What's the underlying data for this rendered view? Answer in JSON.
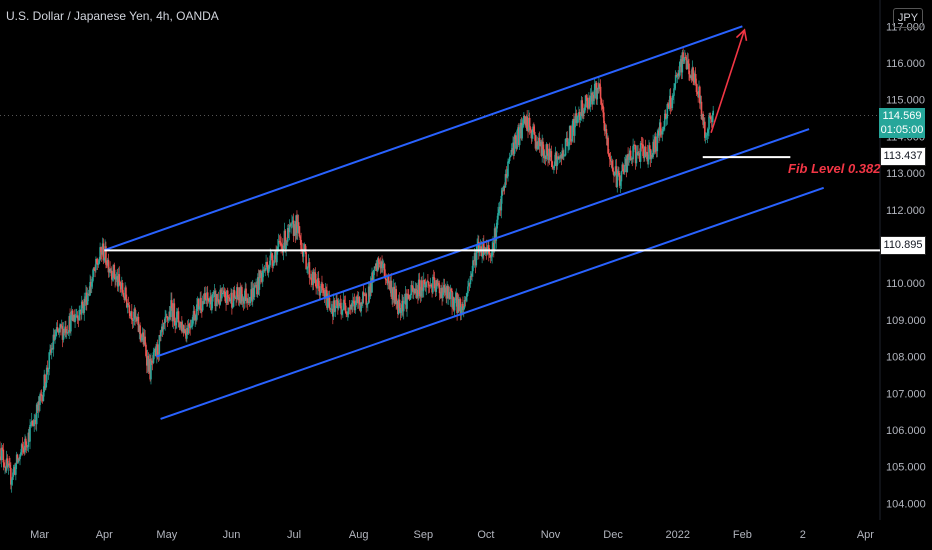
{
  "header": {
    "title": "U.S. Dollar / Japanese Yen, 4h, OANDA",
    "currency": "JPY"
  },
  "price_tags": {
    "last_price": "114.569",
    "countdown": "01:05:00",
    "level_upper": "113.437",
    "level_lower": "110.895"
  },
  "annotation": {
    "fib_label": "Fib Level 0.382"
  },
  "colors": {
    "background": "#000000",
    "up_candle": "#26a69a",
    "down_candle": "#ef5350",
    "channel": "#2962ff",
    "level": "#ffffff",
    "arrow": "#f23645",
    "text": "#b2b5be"
  },
  "chart_data": {
    "type": "candlestick",
    "title": "U.S. Dollar / Japanese Yen, 4h, OANDA",
    "y_axis": {
      "ticks": [
        "104.000",
        "105.000",
        "106.000",
        "107.000",
        "108.000",
        "109.000",
        "110.000",
        "111.000",
        "112.000",
        "113.000",
        "114.000",
        "115.000",
        "116.000",
        "117.000"
      ],
      "ylim": [
        103.6,
        117.5
      ]
    },
    "x_axis": {
      "ticks": [
        "Mar",
        "Apr",
        "May",
        "Jun",
        "Jul",
        "Aug",
        "Sep",
        "Oct",
        "Nov",
        "Dec",
        "2022",
        "Feb",
        "2",
        "Apr"
      ],
      "xlim": [
        "2021-02-10",
        "2022-04-08"
      ]
    },
    "price_path": [
      {
        "x": "2021-02-10",
        "y": 105.5
      },
      {
        "x": "2021-02-15",
        "y": 104.7
      },
      {
        "x": "2021-02-22",
        "y": 105.6
      },
      {
        "x": "2021-03-01",
        "y": 106.7
      },
      {
        "x": "2021-03-08",
        "y": 108.5
      },
      {
        "x": "2021-03-15",
        "y": 108.9
      },
      {
        "x": "2021-03-22",
        "y": 109.4
      },
      {
        "x": "2021-03-31",
        "y": 110.9
      },
      {
        "x": "2021-04-06",
        "y": 110.2
      },
      {
        "x": "2021-04-13",
        "y": 109.4
      },
      {
        "x": "2021-04-20",
        "y": 108.4
      },
      {
        "x": "2021-04-23",
        "y": 107.6
      },
      {
        "x": "2021-05-03",
        "y": 109.3
      },
      {
        "x": "2021-05-10",
        "y": 108.7
      },
      {
        "x": "2021-05-17",
        "y": 109.5
      },
      {
        "x": "2021-06-01",
        "y": 109.6
      },
      {
        "x": "2021-06-11",
        "y": 109.7
      },
      {
        "x": "2021-06-18",
        "y": 110.5
      },
      {
        "x": "2021-07-02",
        "y": 111.6
      },
      {
        "x": "2021-07-09",
        "y": 110.2
      },
      {
        "x": "2021-07-20",
        "y": 109.3
      },
      {
        "x": "2021-08-04",
        "y": 109.5
      },
      {
        "x": "2021-08-11",
        "y": 110.6
      },
      {
        "x": "2021-08-20",
        "y": 109.4
      },
      {
        "x": "2021-09-02",
        "y": 110.0
      },
      {
        "x": "2021-09-10",
        "y": 109.8
      },
      {
        "x": "2021-09-20",
        "y": 109.3
      },
      {
        "x": "2021-09-27",
        "y": 111.0
      },
      {
        "x": "2021-10-04",
        "y": 110.9
      },
      {
        "x": "2021-10-13",
        "y": 113.6
      },
      {
        "x": "2021-10-20",
        "y": 114.4
      },
      {
        "x": "2021-10-28",
        "y": 113.6
      },
      {
        "x": "2021-11-05",
        "y": 113.3
      },
      {
        "x": "2021-11-16",
        "y": 114.8
      },
      {
        "x": "2021-11-24",
        "y": 115.3
      },
      {
        "x": "2021-11-29",
        "y": 113.5
      },
      {
        "x": "2021-12-03",
        "y": 112.8
      },
      {
        "x": "2021-12-10",
        "y": 113.5
      },
      {
        "x": "2021-12-20",
        "y": 113.6
      },
      {
        "x": "2021-12-28",
        "y": 114.8
      },
      {
        "x": "2022-01-04",
        "y": 116.2
      },
      {
        "x": "2022-01-11",
        "y": 115.2
      },
      {
        "x": "2022-01-14",
        "y": 114.1
      },
      {
        "x": "2022-01-18",
        "y": 114.6
      }
    ],
    "lines": [
      {
        "name": "channel-top",
        "from": {
          "x": "2021-04-01",
          "y": 110.9
        },
        "to": {
          "x": "2022-02-01",
          "y": 117.0
        }
      },
      {
        "name": "channel-mid",
        "from": {
          "x": "2021-04-26",
          "y": 108.0
        },
        "to": {
          "x": "2022-03-05",
          "y": 114.2
        }
      },
      {
        "name": "channel-bottom",
        "from": {
          "x": "2021-04-28",
          "y": 106.3
        },
        "to": {
          "x": "2022-03-12",
          "y": 112.6
        }
      },
      {
        "name": "level-110.895",
        "from": {
          "x": "2021-04-01",
          "y": 110.895
        },
        "to": {
          "x": "2022-04-08",
          "y": 110.895
        }
      },
      {
        "name": "level-113.437",
        "from": {
          "x": "2022-01-13",
          "y": 113.437
        },
        "to": {
          "x": "2022-02-24",
          "y": 113.437
        }
      }
    ],
    "arrow": {
      "from": {
        "x": "2022-01-17",
        "y": 114.1
      },
      "to": {
        "x": "2022-02-02",
        "y": 116.9
      }
    },
    "last_price": 114.569,
    "grid": false
  }
}
